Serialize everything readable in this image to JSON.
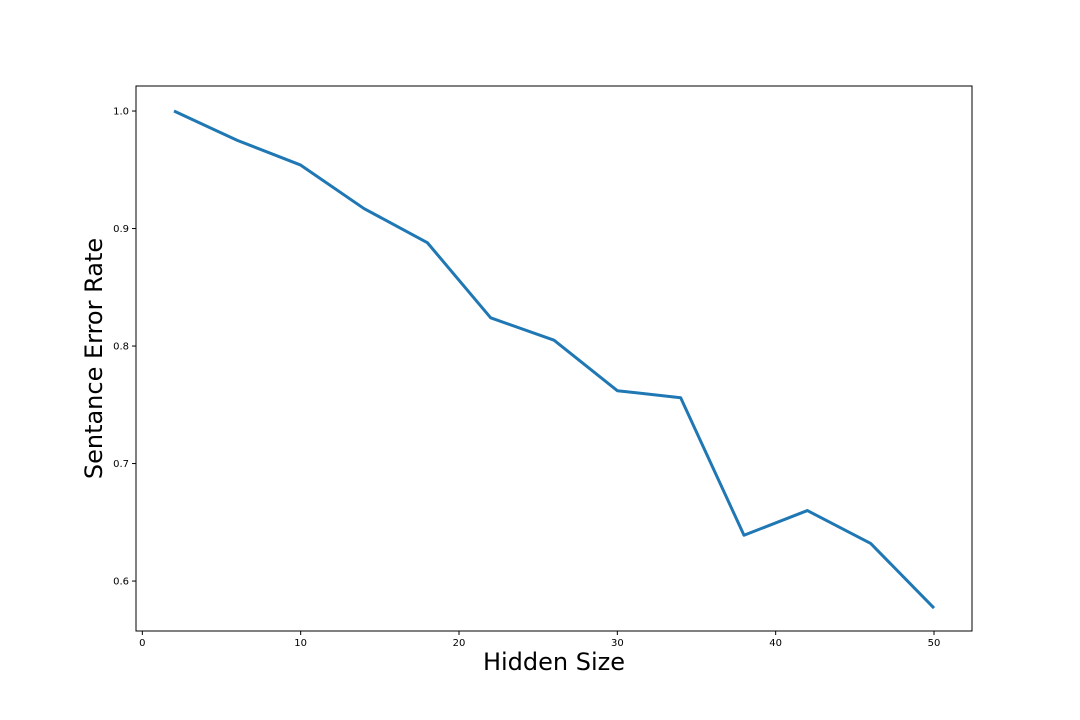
{
  "chart_data": {
    "type": "line",
    "title": "",
    "xlabel": "Hidden Size",
    "ylabel": "Sentance Error Rate",
    "xlim": [
      -0.4,
      52.4
    ],
    "ylim": [
      0.5575,
      1.0213
    ],
    "xticks": [
      0,
      10,
      20,
      30,
      40,
      50
    ],
    "yticks": [
      0.6,
      0.7,
      0.8,
      0.9,
      1.0
    ],
    "xtick_labels": [
      "0",
      "10",
      "20",
      "30",
      "40",
      "50"
    ],
    "ytick_labels": [
      "0.6",
      "0.7",
      "0.8",
      "0.9",
      "1.0"
    ],
    "grid": false,
    "series": [
      {
        "color": "#1f77b4",
        "x": [
          2,
          6,
          10,
          14,
          18,
          22,
          26,
          30,
          34,
          38,
          42,
          46,
          50
        ],
        "y": [
          1.0,
          0.975,
          0.954,
          0.917,
          0.888,
          0.824,
          0.805,
          0.762,
          0.756,
          0.639,
          0.66,
          0.632,
          0.577
        ]
      }
    ]
  }
}
